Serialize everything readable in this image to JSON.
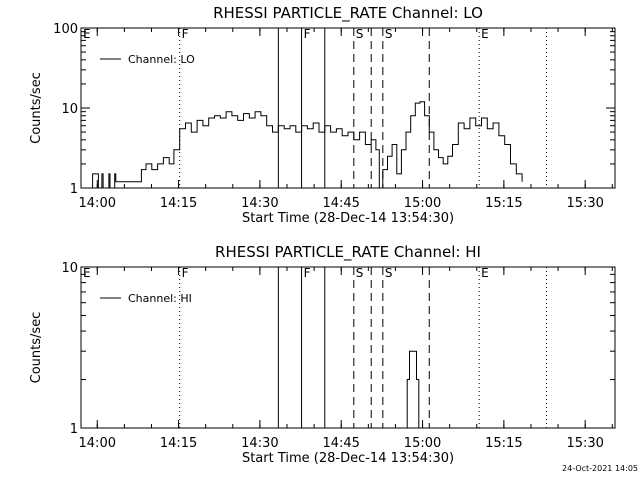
{
  "timestamp": "24-Oct-2021 14:05",
  "chart_data": [
    {
      "type": "line",
      "title": "RHESSI PARTICLE_RATE Channel: LO",
      "xlabel": "Start Time (28-Dec-14 13:54:30)",
      "ylabel": "Counts/sec",
      "yscale": "log",
      "ylim": [
        1,
        100
      ],
      "y_ticks": [
        "1",
        "10",
        "100"
      ],
      "xlim": [
        -3,
        43
      ],
      "x_ticks": [
        "14:00",
        "14:15",
        "14:30",
        "14:45",
        "15:00",
        "15:15",
        "15:30"
      ],
      "legend": "Channel: LO",
      "legend_position": "top-left",
      "markers": [
        {
          "label": "E",
          "minute": -3,
          "style": "none"
        },
        {
          "label": "F",
          "minute": 5.5,
          "style": "dotted"
        },
        {
          "label": "",
          "minute": 14.0,
          "style": "solid"
        },
        {
          "label": "F",
          "minute": 16.0,
          "style": "solid"
        },
        {
          "label": "",
          "minute": 18.0,
          "style": "solid"
        },
        {
          "label": "S",
          "minute": 20.5,
          "style": "dashed"
        },
        {
          "label": "",
          "minute": 22.0,
          "style": "dashed"
        },
        {
          "label": "S",
          "minute": 23.0,
          "style": "dashed"
        },
        {
          "label": "",
          "minute": 27.0,
          "style": "dashed"
        },
        {
          "label": "E",
          "minute": 31.3,
          "style": "dotted"
        },
        {
          "label": "",
          "minute": 37.1,
          "style": "dotted"
        }
      ],
      "series": [
        {
          "minutes": [
            -3,
            -2.1,
            -2.0,
            -1.5,
            -1.2,
            -1.1,
            -0.6,
            -0.5,
            -0.1,
            0.0,
            2.1,
            2.2,
            2.6,
            3.1,
            3.6,
            4.1,
            4.6,
            5.0,
            5.5,
            6.0,
            6.5,
            7.0,
            7.5,
            8.0,
            8.5,
            9.0,
            9.5,
            10.0,
            10.5,
            11.0,
            11.5,
            12.0,
            12.5,
            13.0,
            13.5,
            14.0,
            14.5,
            15.0,
            15.5,
            16.0,
            16.5,
            17.0,
            17.5,
            18.0,
            18.5,
            19.0,
            19.5,
            20.0,
            20.5,
            21.0,
            21.5,
            22.0,
            22.4,
            22.7,
            23.0,
            23.4,
            23.8,
            24.2,
            24.6,
            25.0,
            25.4,
            25.8,
            26.2,
            26.6,
            27.0,
            27.4,
            27.8,
            28.2,
            28.6,
            29.0,
            29.5,
            30.0,
            30.5,
            31.0,
            31.5,
            32.0,
            32.5,
            33.0,
            33.5,
            34.0,
            34.5,
            35.0
          ],
          "values": [
            1,
            1,
            1.5,
            1,
            1.5,
            1,
            1.5,
            1,
            1.5,
            1.2,
            1.2,
            1.7,
            2.0,
            1.7,
            2.0,
            2.4,
            2.0,
            3.0,
            5.5,
            6.5,
            5.0,
            7.0,
            6.0,
            7.5,
            8.0,
            7.5,
            9.0,
            8.0,
            7.0,
            8.5,
            7.5,
            9.0,
            8.0,
            6.0,
            5.0,
            6.0,
            5.5,
            6.0,
            5.0,
            6.0,
            5.5,
            6.5,
            5.0,
            6.0,
            5.0,
            5.5,
            4.5,
            5.0,
            4.0,
            5.0,
            3.5,
            4.0,
            3.0,
            1,
            1.7,
            2.5,
            3.5,
            1.5,
            3.0,
            5.0,
            8.0,
            11.5,
            12.0,
            8.0,
            5.0,
            3.0,
            2.4,
            2.0,
            2.5,
            3.5,
            6.5,
            5.5,
            7.5,
            6.0,
            7.5,
            5.5,
            6.5,
            4.5,
            3.5,
            2.0,
            1.5,
            1.2
          ]
        }
      ]
    },
    {
      "type": "line",
      "title": "RHESSI PARTICLE_RATE Channel: HI",
      "xlabel": "Start Time (28-Dec-14 13:54:30)",
      "ylabel": "Counts/sec",
      "yscale": "log",
      "ylim": [
        1,
        10
      ],
      "y_ticks": [
        "1",
        "10"
      ],
      "xlim": [
        -3,
        43
      ],
      "x_ticks": [
        "14:00",
        "14:15",
        "14:30",
        "14:45",
        "15:00",
        "15:15",
        "15:30"
      ],
      "legend": "Channel: HI",
      "legend_position": "top-left",
      "markers": [
        {
          "label": "E",
          "minute": -3,
          "style": "none"
        },
        {
          "label": "F",
          "minute": 5.5,
          "style": "dotted"
        },
        {
          "label": "",
          "minute": 14.0,
          "style": "solid"
        },
        {
          "label": "F",
          "minute": 16.0,
          "style": "solid"
        },
        {
          "label": "",
          "minute": 18.0,
          "style": "solid"
        },
        {
          "label": "S",
          "minute": 20.5,
          "style": "dashed"
        },
        {
          "label": "",
          "minute": 22.0,
          "style": "dashed"
        },
        {
          "label": "S",
          "minute": 23.0,
          "style": "dashed"
        },
        {
          "label": "",
          "minute": 27.0,
          "style": "dashed"
        },
        {
          "label": "E",
          "minute": 31.3,
          "style": "dotted"
        },
        {
          "label": "",
          "minute": 37.1,
          "style": "dotted"
        }
      ],
      "series": [
        {
          "minutes": [
            24.9,
            25.1,
            25.3,
            25.7,
            25.9,
            26.1
          ],
          "values": [
            1,
            2,
            3,
            3,
            2,
            1
          ]
        }
      ]
    }
  ]
}
